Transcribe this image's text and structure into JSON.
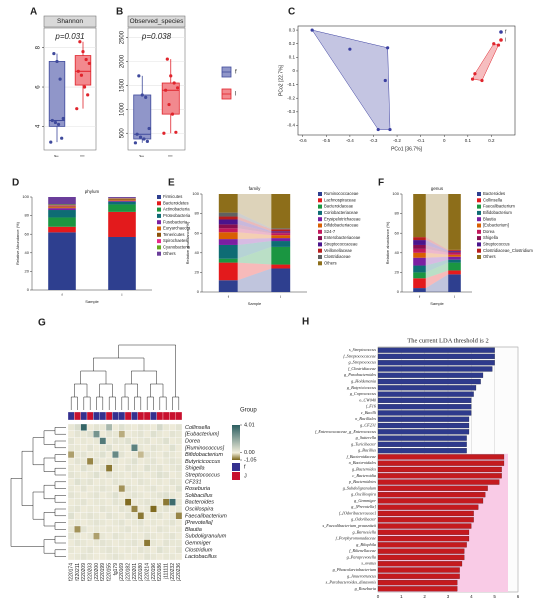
{
  "chart_data": [
    {
      "panel": "A",
      "type": "box",
      "title": "Shannon",
      "annotation": "p=0.031",
      "categories": [
        "f",
        "l"
      ],
      "colors": [
        "#3f4a9c",
        "#e0242c"
      ],
      "fills": [
        "#9096c9",
        "#f2898e"
      ],
      "boxes": [
        {
          "min": 3.2,
          "q1": 4.0,
          "median": 4.3,
          "q3": 7.3,
          "max": 7.7
        },
        {
          "min": 4.9,
          "q1": 6.1,
          "median": 6.8,
          "q3": 7.6,
          "max": 8.3
        }
      ],
      "points": [
        [
          3.2,
          3.4,
          4.1,
          4.2,
          4.3,
          4.4,
          6.4,
          7.3,
          7.7
        ],
        [
          4.9,
          5.6,
          6.0,
          6.6,
          6.8,
          7.2,
          7.4,
          7.8,
          8.3
        ]
      ],
      "ylim": [
        2.8,
        9.0
      ],
      "yticks": [
        4,
        6,
        8
      ],
      "grid": true
    },
    {
      "panel": "B",
      "type": "box",
      "title": "Observed_species",
      "annotation": "p=0.038",
      "categories": [
        "f",
        "l"
      ],
      "colors": [
        "#3f4a9c",
        "#e0242c"
      ],
      "fills": [
        "#9096c9",
        "#f2898e"
      ],
      "boxes": [
        {
          "min": 300,
          "q1": 380,
          "median": 480,
          "q3": 1300,
          "max": 1700
        },
        {
          "min": 500,
          "q1": 900,
          "median": 1400,
          "q3": 1550,
          "max": 2050
        }
      ],
      "points": [
        [
          300,
          330,
          380,
          420,
          480,
          600,
          1250,
          1300,
          1700
        ],
        [
          500,
          520,
          900,
          1100,
          1400,
          1450,
          1550,
          1700,
          2050
        ]
      ],
      "ylim": [
        150,
        2700
      ],
      "yticks": [
        500,
        1000,
        1500,
        2000,
        2500
      ],
      "grid": true,
      "legend": true
    },
    {
      "panel": "C",
      "type": "scatter",
      "xlabel": "PCo1 [36.7%]",
      "ylabel": "PCo2 [22.7%]",
      "hull": true,
      "series": [
        {
          "name": "f",
          "color": "#3a3fa0",
          "x": [
            -0.56,
            -0.4,
            -0.24,
            -0.25,
            -0.28,
            -0.23
          ],
          "y": [
            0.3,
            0.16,
            0.17,
            -0.07,
            -0.43,
            -0.43
          ]
        },
        {
          "name": "l",
          "color": "#e0242c",
          "x": [
            0.21,
            0.23,
            0.13,
            0.16,
            0.12
          ],
          "y": [
            0.2,
            0.19,
            -0.02,
            -0.07,
            -0.06
          ]
        }
      ],
      "xlim": [
        -0.62,
        0.3
      ],
      "ylim": [
        -0.47,
        0.33
      ],
      "xticks": [
        -0.6,
        -0.5,
        -0.4,
        -0.3,
        -0.2,
        -0.1,
        0,
        0.1,
        0.2
      ],
      "yticks": [
        -0.4,
        -0.3,
        -0.2,
        -0.1,
        0,
        0.1,
        0.2,
        0.3
      ]
    },
    {
      "panel": "D",
      "type": "stacked_bar",
      "title": "phylum",
      "xlabel": "Sample",
      "ylabel": "Relative Abundance (%)",
      "categories": [
        "f",
        "l"
      ],
      "ylim": [
        0,
        100
      ],
      "yticks": [
        0,
        20,
        40,
        60,
        80,
        100
      ],
      "series": [
        {
          "name": "Firmicutes",
          "color": "#2e3f8f",
          "values": [
            62,
            57
          ]
        },
        {
          "name": "Bacteroidetes",
          "color": "#e31a1c",
          "values": [
            6,
            27
          ]
        },
        {
          "name": "Actinobacteria",
          "color": "#1a9641",
          "values": [
            10,
            8
          ]
        },
        {
          "name": "Proteobacteria",
          "color": "#0e6c74",
          "values": [
            8,
            3
          ]
        },
        {
          "name": "Fusobacteria",
          "color": "#7b1fa2",
          "values": [
            2,
            1
          ]
        },
        {
          "name": "Euryarchaeota",
          "color": "#d95f02",
          "values": [
            1,
            1
          ]
        },
        {
          "name": "Tenericutes",
          "color": "#8c510a",
          "values": [
            1,
            1
          ]
        },
        {
          "name": "Spirochaetes",
          "color": "#e7298a",
          "values": [
            1,
            0.5
          ]
        },
        {
          "name": "Cyanobacteria",
          "color": "#66a61e",
          "values": [
            1,
            0.5
          ]
        },
        {
          "name": "Others",
          "color": "#6a3d9a",
          "values": [
            8,
            1
          ]
        }
      ]
    },
    {
      "panel": "E",
      "type": "stacked_bar",
      "title": "family",
      "xlabel": "Sample",
      "ylabel": "Relative abundance (%)",
      "categories": [
        "f",
        "l"
      ],
      "ylim": [
        0,
        100
      ],
      "yticks": [
        0,
        20,
        40,
        60,
        80,
        100
      ],
      "flow": true,
      "series": [
        {
          "name": "Ruminococcaceae",
          "color": "#2e3f8f",
          "values": [
            12,
            24
          ]
        },
        {
          "name": "Lachnospiraceae",
          "color": "#e31a1c",
          "values": [
            18,
            4
          ]
        },
        {
          "name": "Bacteroidaceae",
          "color": "#1a9641",
          "values": [
            4,
            18
          ]
        },
        {
          "name": "Coriobacteriaceae",
          "color": "#0e6c74",
          "values": [
            14,
            6
          ]
        },
        {
          "name": "Erysipelotrichaceae",
          "color": "#7b1fa2",
          "values": [
            6,
            3
          ]
        },
        {
          "name": "Bifidobacteriaceae",
          "color": "#d95f02",
          "values": [
            7,
            3
          ]
        },
        {
          "name": "S24-7",
          "color": "#c2185b",
          "values": [
            4,
            2
          ]
        },
        {
          "name": "Enterobacteriaceae",
          "color": "#880e4f",
          "values": [
            4,
            1
          ]
        },
        {
          "name": "Streptococcaceae",
          "color": "#4a148c",
          "values": [
            5,
            1
          ]
        },
        {
          "name": "Veillonellaceae",
          "color": "#b71c1c",
          "values": [
            3,
            2
          ]
        },
        {
          "name": "Clostridiaceae",
          "color": "#616161",
          "values": [
            4,
            1
          ]
        },
        {
          "name": "Others",
          "color": "#8d6e1a",
          "values": [
            19,
            35
          ]
        }
      ]
    },
    {
      "panel": "F",
      "type": "stacked_bar",
      "title": "genus",
      "xlabel": "Sample",
      "ylabel": "Relative abundance (%)",
      "categories": [
        "f",
        "l"
      ],
      "ylim": [
        0,
        100
      ],
      "yticks": [
        0,
        20,
        40,
        60,
        80,
        100
      ],
      "flow": true,
      "series": [
        {
          "name": "Bacteroides",
          "color": "#2e3f8f",
          "values": [
            4,
            18
          ]
        },
        {
          "name": "Collinsella",
          "color": "#e31a1c",
          "values": [
            10,
            4
          ]
        },
        {
          "name": "Faecalibacterium",
          "color": "#1a9641",
          "values": [
            6,
            8
          ]
        },
        {
          "name": "Bifidobacterium",
          "color": "#0e6c74",
          "values": [
            7,
            3
          ]
        },
        {
          "name": "Blautia",
          "color": "#7b1fa2",
          "values": [
            8,
            3
          ]
        },
        {
          "name": "[Eubacterium]",
          "color": "#d95f02",
          "values": [
            5,
            2
          ]
        },
        {
          "name": "Dorea",
          "color": "#c2185b",
          "values": [
            4,
            2
          ]
        },
        {
          "name": "Shigella",
          "color": "#880e4f",
          "values": [
            4,
            1
          ]
        },
        {
          "name": "Streptococcus",
          "color": "#4a148c",
          "values": [
            5,
            1
          ]
        },
        {
          "name": "Clostridiaceae_Clostridium",
          "color": "#b71c1c",
          "values": [
            3,
            1
          ]
        },
        {
          "name": "Others",
          "color": "#8d6e1a",
          "values": [
            44,
            57
          ]
        }
      ]
    },
    {
      "panel": "G",
      "type": "heatmap",
      "legend_title": "Group",
      "rows": [
        "Collinsella",
        "[Eubacterium]",
        "Dorea",
        "[Ruminococcus]",
        "Bifidobacterium",
        "Butyricicoccus",
        "Shigella",
        "Streptococcus",
        "CF231",
        "Roseburia",
        "Solibacillus",
        "Bacteroides",
        "Oscillospira",
        "Faecalibacterium",
        "[Prevotella]",
        "Blautia",
        "Subdoligranulum",
        "Gemmiger",
        "Clostridium",
        "Lactobacillus"
      ],
      "columns": [
        "f220174",
        "f220211",
        "f220209",
        "f220203",
        "j220200",
        "f220199",
        "f220155",
        "fg179",
        "j220169",
        "j220182",
        "j220201",
        "j220180",
        "j220214",
        "j220196",
        "f220186",
        "j111111",
        "j220232",
        "j220236"
      ],
      "column_groups": [
        "f",
        "J",
        "f",
        "J",
        "f",
        "f",
        "J",
        "f",
        "f",
        "J",
        "f",
        "J",
        "J",
        "f",
        "J",
        "J",
        "J",
        "J"
      ],
      "groups": [
        {
          "name": "f",
          "color": "#34308f"
        },
        {
          "name": "J",
          "color": "#c8102e"
        }
      ],
      "colors": [
        "#7a6418",
        "#f2eedb",
        "#2b5d60"
      ],
      "zlim": [
        -1.05,
        4.01
      ],
      "cticks": [
        4.01,
        {
          "value": 0,
          "label": "0.00"
        },
        -1.05
      ],
      "values": [
        [
          0.2,
          0.5,
          3.8,
          0.1,
          0.3,
          0.2,
          1.5,
          0.1,
          0.4,
          0.2,
          0.1,
          0.3,
          0.2,
          0.1,
          0.6,
          0.2,
          0.1,
          0.3
        ],
        [
          0.1,
          0.3,
          0.2,
          0.4,
          2.5,
          0.1,
          0.3,
          0.2,
          -0.5,
          0.1,
          0.2,
          0.3,
          0.1,
          0.4,
          0.2,
          0.1,
          0.3,
          0.2
        ],
        [
          0.3,
          0.1,
          0.2,
          0.1,
          0.2,
          3.2,
          0.1,
          0.3,
          0.2,
          0.4,
          0.1,
          0.2,
          0.3,
          0.1,
          0.2,
          0.4,
          0.1,
          0.2
        ],
        [
          0.2,
          0.2,
          0.1,
          0.3,
          0.1,
          0.2,
          0.4,
          0.1,
          0.2,
          0.1,
          3.0,
          0.2,
          0.1,
          0.3,
          0.2,
          0.1,
          0.4,
          0.1
        ],
        [
          -0.6,
          0.2,
          0.3,
          0.1,
          0.2,
          0.4,
          0.1,
          2.8,
          0.3,
          0.1,
          0.2,
          -0.4,
          0.3,
          0.2,
          0.1,
          0.3,
          0.2,
          0.1
        ],
        [
          0.1,
          0.3,
          0.2,
          -0.8,
          0.3,
          0.1,
          0.2,
          0.3,
          0.1,
          0.2,
          0.4,
          0.1,
          0.2,
          0.3,
          0.1,
          0.2,
          0.3,
          0.2
        ],
        [
          0.2,
          0.1,
          0.4,
          0.2,
          0.1,
          0.3,
          -0.9,
          0.2,
          0.1,
          0.3,
          0.2,
          0.1,
          0.4,
          0.2,
          0.3,
          0.1,
          0.2,
          0.3
        ],
        [
          0.3,
          0.2,
          0.1,
          0.2,
          0.4,
          0.1,
          0.3,
          0.2,
          0.2,
          0.1,
          0.3,
          0.2,
          0.1,
          0.2,
          0.4,
          0.3,
          0.1,
          0.2
        ],
        [
          0.1,
          0.4,
          0.2,
          0.3,
          0.1,
          0.2,
          0.1,
          0.3,
          0.2,
          0.2,
          0.1,
          0.3,
          0.2,
          0.1,
          0.2,
          0.1,
          0.3,
          0.2
        ],
        [
          0.2,
          0.1,
          0.3,
          0.1,
          0.2,
          0.3,
          0.2,
          0.1,
          -0.7,
          0.3,
          0.2,
          0.1,
          0.2,
          0.3,
          0.1,
          0.2,
          0.1,
          0.4
        ],
        [
          0.3,
          0.2,
          0.1,
          0.2,
          0.3,
          0.1,
          0.2,
          0.4,
          0.1,
          0.2,
          0.3,
          0.2,
          0.1,
          0.2,
          0.3,
          0.4,
          0.2,
          0.1
        ],
        [
          0.1,
          0.2,
          0.3,
          0.1,
          0.2,
          0.2,
          0.1,
          0.3,
          0.2,
          -1.0,
          0.1,
          0.2,
          0.3,
          0.2,
          0.1,
          -0.9,
          3.6,
          0.2
        ],
        [
          0.2,
          0.3,
          0.1,
          0.2,
          0.1,
          0.3,
          0.2,
          0.1,
          0.3,
          0.2,
          -0.8,
          0.1,
          0.2,
          -1.0,
          0.2,
          0.3,
          0.1,
          0.2
        ],
        [
          0.4,
          0.1,
          0.2,
          0.3,
          0.2,
          0.1,
          0.3,
          0.2,
          0.1,
          0.3,
          0.2,
          -0.9,
          0.1,
          0.2,
          0.3,
          0.1,
          0.2,
          -0.8
        ],
        [
          0.1,
          0.2,
          0.1,
          0.2,
          0.3,
          0.2,
          0.1,
          0.2,
          0.3,
          0.1,
          0.2,
          0.3,
          0.1,
          0.2,
          0.1,
          0.2,
          0.3,
          0.1
        ],
        [
          0.2,
          -0.7,
          0.3,
          0.1,
          0.2,
          0.1,
          0.2,
          0.1,
          0.2,
          0.3,
          0.1,
          0.2,
          0.2,
          0.1,
          0.3,
          0.2,
          0.1,
          0.2
        ],
        [
          0.3,
          0.2,
          0.1,
          0.2,
          -0.6,
          0.2,
          0.1,
          0.3,
          0.2,
          0.1,
          0.2,
          0.1,
          0.3,
          0.2,
          0.1,
          0.2,
          0.3,
          0.1
        ],
        [
          0.1,
          0.3,
          0.2,
          0.1,
          0.2,
          0.3,
          0.2,
          0.1,
          0.2,
          0.2,
          0.3,
          0.1,
          -0.9,
          0.2,
          0.1,
          0.3,
          0.2,
          0.2
        ],
        [
          0.2,
          0.1,
          0.2,
          0.3,
          0.1,
          0.2,
          0.3,
          0.2,
          0.1,
          0.2,
          0.1,
          0.3,
          0.2,
          0.1,
          0.4,
          0.2,
          0.1,
          0.3
        ],
        [
          0.1,
          0.2,
          0.3,
          0.2,
          0.1,
          0.1,
          0.2,
          0.3,
          0.2,
          0.1,
          0.2,
          0.1,
          0.3,
          0.2,
          0.1,
          0.2,
          0.2,
          0.1
        ]
      ]
    },
    {
      "panel": "H",
      "type": "lda_bar",
      "title": "The current LDA threshold is 2",
      "xlim": [
        0,
        6
      ],
      "xticks": [
        0,
        1,
        2,
        3,
        4,
        5,
        6
      ],
      "series": [
        {
          "color": "#2e3a8c",
          "categories": [
            "s_Streptococcus",
            "f_Streptococcaceae",
            "g_Streptococcus",
            "f_Clostridiaceae",
            "g_Parabacteroides",
            "g_Holdemania",
            "g_Butyricicoccus",
            "g_Coprococcus",
            "o_CW040",
            "f_F16",
            "c_Bacilli",
            "o_Bacillales",
            "g_CF231",
            "f_Enterococcaceae_g_Enterococcus",
            "g_Sutterella",
            "g_Turicibacter",
            "g_Bacillus"
          ],
          "values": [
            5.0,
            5.0,
            5.0,
            4.9,
            4.5,
            4.4,
            4.2,
            4.1,
            4.0,
            4.0,
            4.0,
            3.9,
            3.9,
            3.9,
            3.8,
            3.8,
            3.8
          ]
        },
        {
          "color": "#c41a1f",
          "highlight": "#f9cbe6",
          "categories": [
            "f_Bacteroidaceae",
            "o_Bacteroidales",
            "g_Bacteroides",
            "c_Bacteroidia",
            "p_Bacteroidetes",
            "g_Subdoligranulum",
            "g_Oscillospira",
            "g_Gemmiger",
            "g_[Prevotella]",
            "f_[Odoribacteraceae]",
            "g_Odoribacter",
            "s_Faecalibacterium_prausnitzii",
            "g_Barnesiella",
            "f_Porphyromonadaceae",
            "g_Bilophila",
            "f_Rikenellaceae",
            "g_Paraprevotella",
            "s_ovatus",
            "g_Phascolarctobacterium",
            "g_Anaerotruncus",
            "s_Parabacteroides_distasonis",
            "g_Roseburia"
          ],
          "values": [
            5.4,
            5.4,
            5.3,
            5.3,
            5.2,
            4.7,
            4.6,
            4.5,
            4.3,
            4.1,
            4.1,
            4.0,
            3.9,
            3.9,
            3.8,
            3.7,
            3.7,
            3.6,
            3.5,
            3.5,
            3.4,
            3.4
          ]
        }
      ]
    }
  ]
}
